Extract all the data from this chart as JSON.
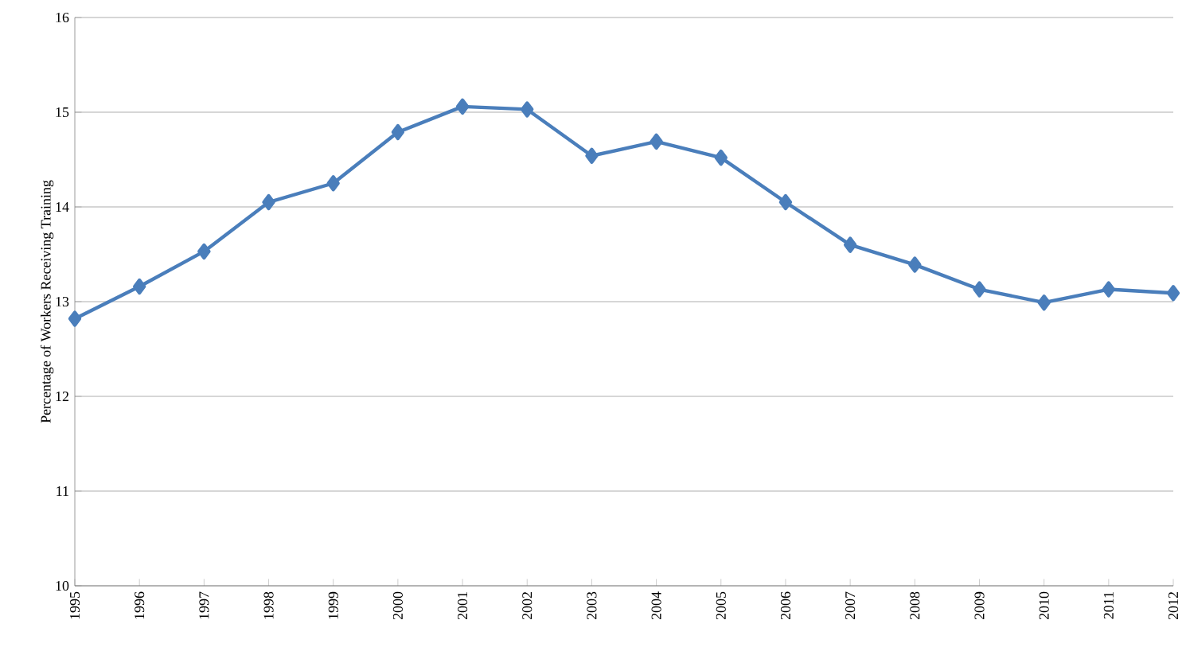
{
  "chart_data": {
    "type": "line",
    "ylabel": "Percentage of Workers Receiving Training",
    "categories": [
      "1995",
      "1996",
      "1997",
      "1998",
      "1999",
      "2000",
      "2001",
      "2002",
      "2003",
      "2004",
      "2005",
      "2006",
      "2007",
      "2008",
      "2009",
      "2010",
      "2011",
      "2012"
    ],
    "series": [
      {
        "color": "#4a7ebb",
        "values": [
          12.82,
          13.16,
          13.53,
          14.05,
          14.25,
          14.79,
          15.06,
          15.03,
          14.54,
          14.69,
          14.52,
          14.05,
          13.6,
          13.39,
          13.13,
          12.99,
          13.13,
          13.09
        ]
      }
    ],
    "ylim": [
      10,
      16
    ],
    "yticks": [
      10,
      11,
      12,
      13,
      14,
      15,
      16
    ],
    "grid": "y",
    "marker": "diamond",
    "line_style": "solid"
  }
}
